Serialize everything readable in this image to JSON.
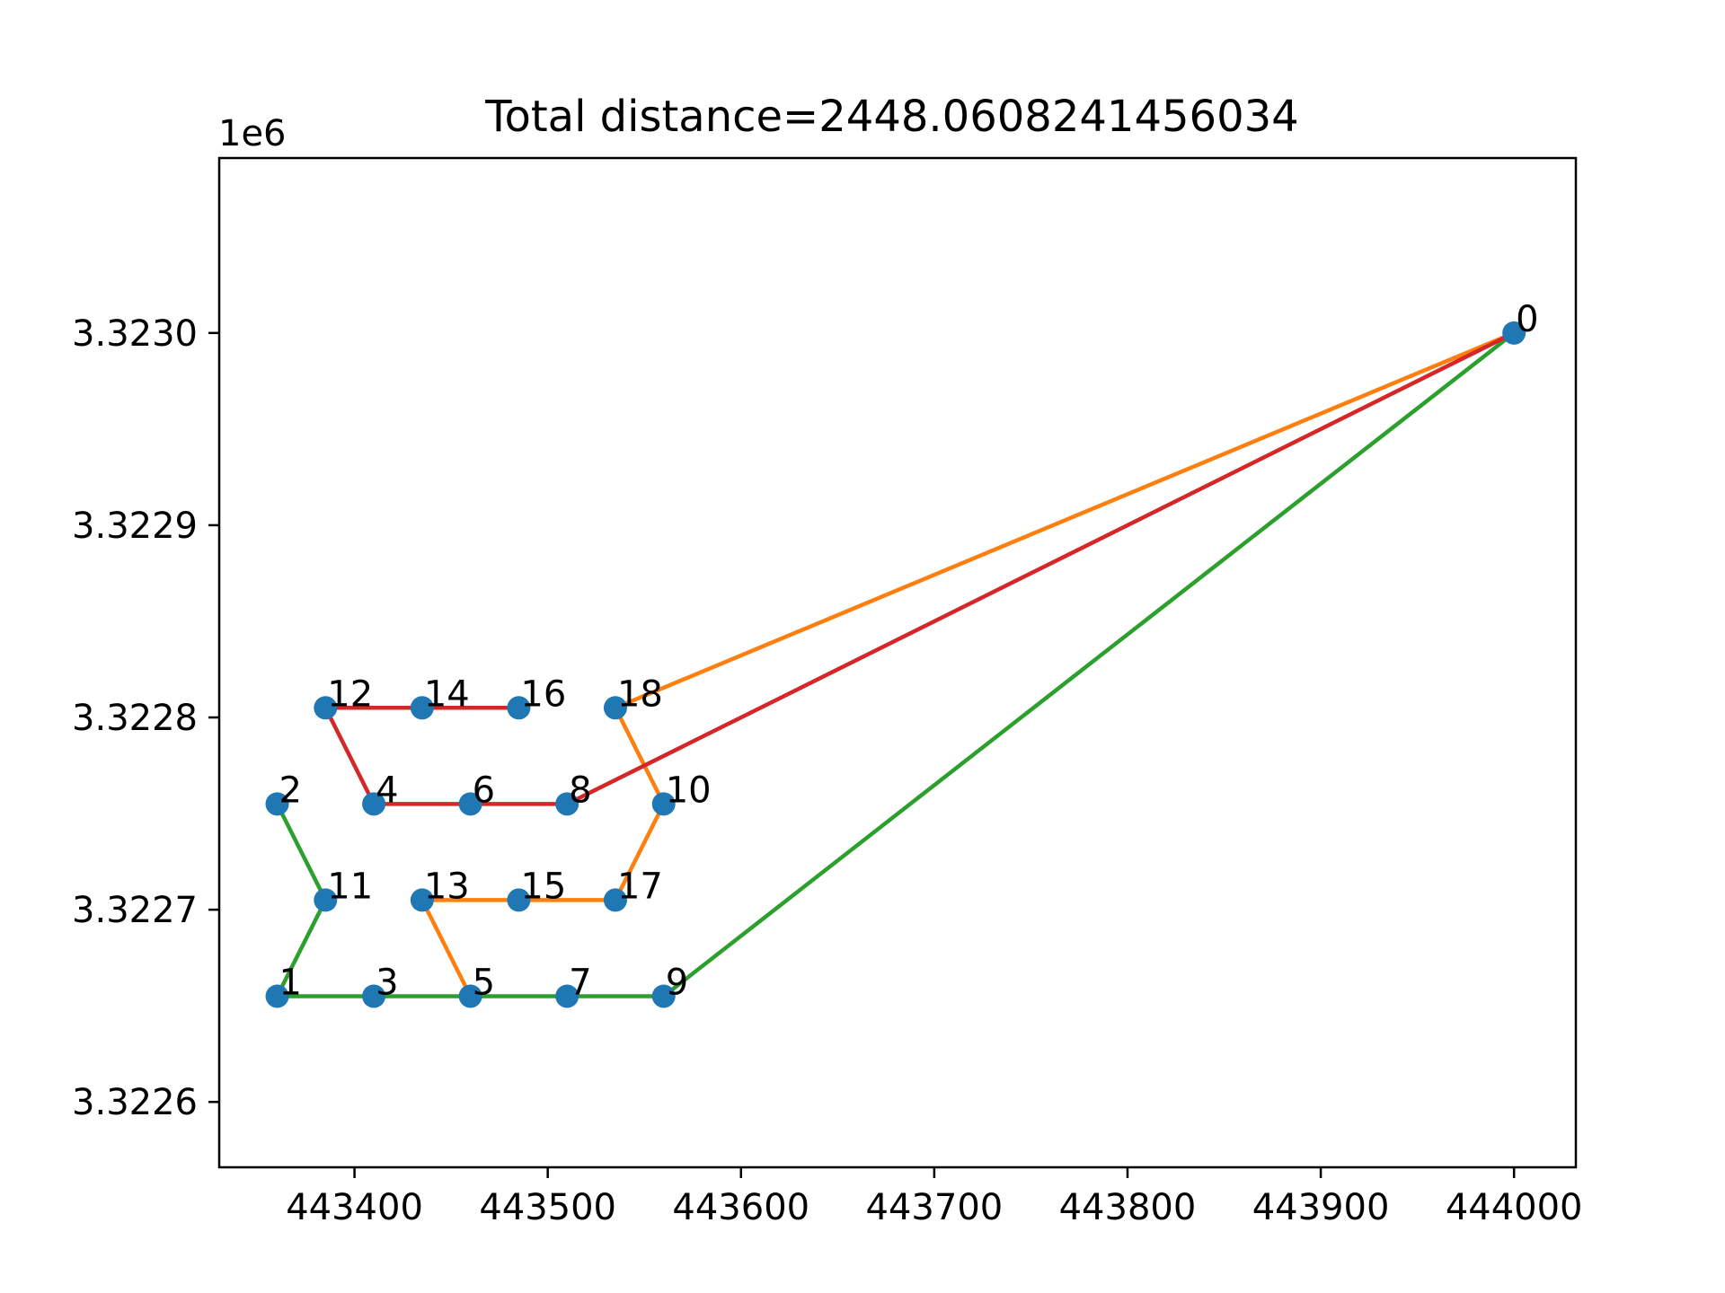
{
  "chart_data": {
    "type": "scatter",
    "title": "Total distance=2448.0608241456034",
    "xlabel": "",
    "ylabel": "",
    "y_offset_label": "1e6",
    "xlim": [
      443330,
      444032
    ],
    "ylim": [
      3322566,
      3323091
    ],
    "x_ticks": [
      443400,
      443500,
      443600,
      443700,
      443800,
      443900,
      444000
    ],
    "x_tick_labels": [
      "443400",
      "443500",
      "443600",
      "443700",
      "443800",
      "443900",
      "444000"
    ],
    "y_ticks": [
      3322600,
      3322700,
      3322800,
      3322900,
      3323000
    ],
    "y_tick_labels": [
      "3.3226",
      "3.3227",
      "3.3228",
      "3.3229",
      "3.3230"
    ],
    "grid": false,
    "point_color": "#1f77b4",
    "points": [
      {
        "label": "0",
        "x": 444000,
        "y": 3323000
      },
      {
        "label": "1",
        "x": 443360,
        "y": 3322655
      },
      {
        "label": "2",
        "x": 443360,
        "y": 3322755
      },
      {
        "label": "3",
        "x": 443410,
        "y": 3322655
      },
      {
        "label": "4",
        "x": 443410,
        "y": 3322755
      },
      {
        "label": "5",
        "x": 443460,
        "y": 3322655
      },
      {
        "label": "6",
        "x": 443460,
        "y": 3322755
      },
      {
        "label": "7",
        "x": 443510,
        "y": 3322655
      },
      {
        "label": "8",
        "x": 443510,
        "y": 3322755
      },
      {
        "label": "9",
        "x": 443560,
        "y": 3322655
      },
      {
        "label": "10",
        "x": 443560,
        "y": 3322755
      },
      {
        "label": "11",
        "x": 443385,
        "y": 3322705
      },
      {
        "label": "12",
        "x": 443385,
        "y": 3322805
      },
      {
        "label": "13",
        "x": 443435,
        "y": 3322705
      },
      {
        "label": "14",
        "x": 443435,
        "y": 3322805
      },
      {
        "label": "15",
        "x": 443485,
        "y": 3322705
      },
      {
        "label": "16",
        "x": 443485,
        "y": 3322805
      },
      {
        "label": "17",
        "x": 443535,
        "y": 3322705
      },
      {
        "label": "18",
        "x": 443535,
        "y": 3322805
      }
    ],
    "routes": [
      {
        "color": "#2ca02c",
        "path": [
          "0",
          "9",
          "7",
          "5",
          "3",
          "1",
          "11",
          "2"
        ]
      },
      {
        "color": "#ff7f0e",
        "path": [
          "0",
          "18",
          "10",
          "17",
          "15",
          "13",
          "5"
        ]
      },
      {
        "color": "#d62728",
        "path": [
          "0",
          "8",
          "6",
          "4",
          "12",
          "14",
          "16"
        ]
      }
    ]
  }
}
